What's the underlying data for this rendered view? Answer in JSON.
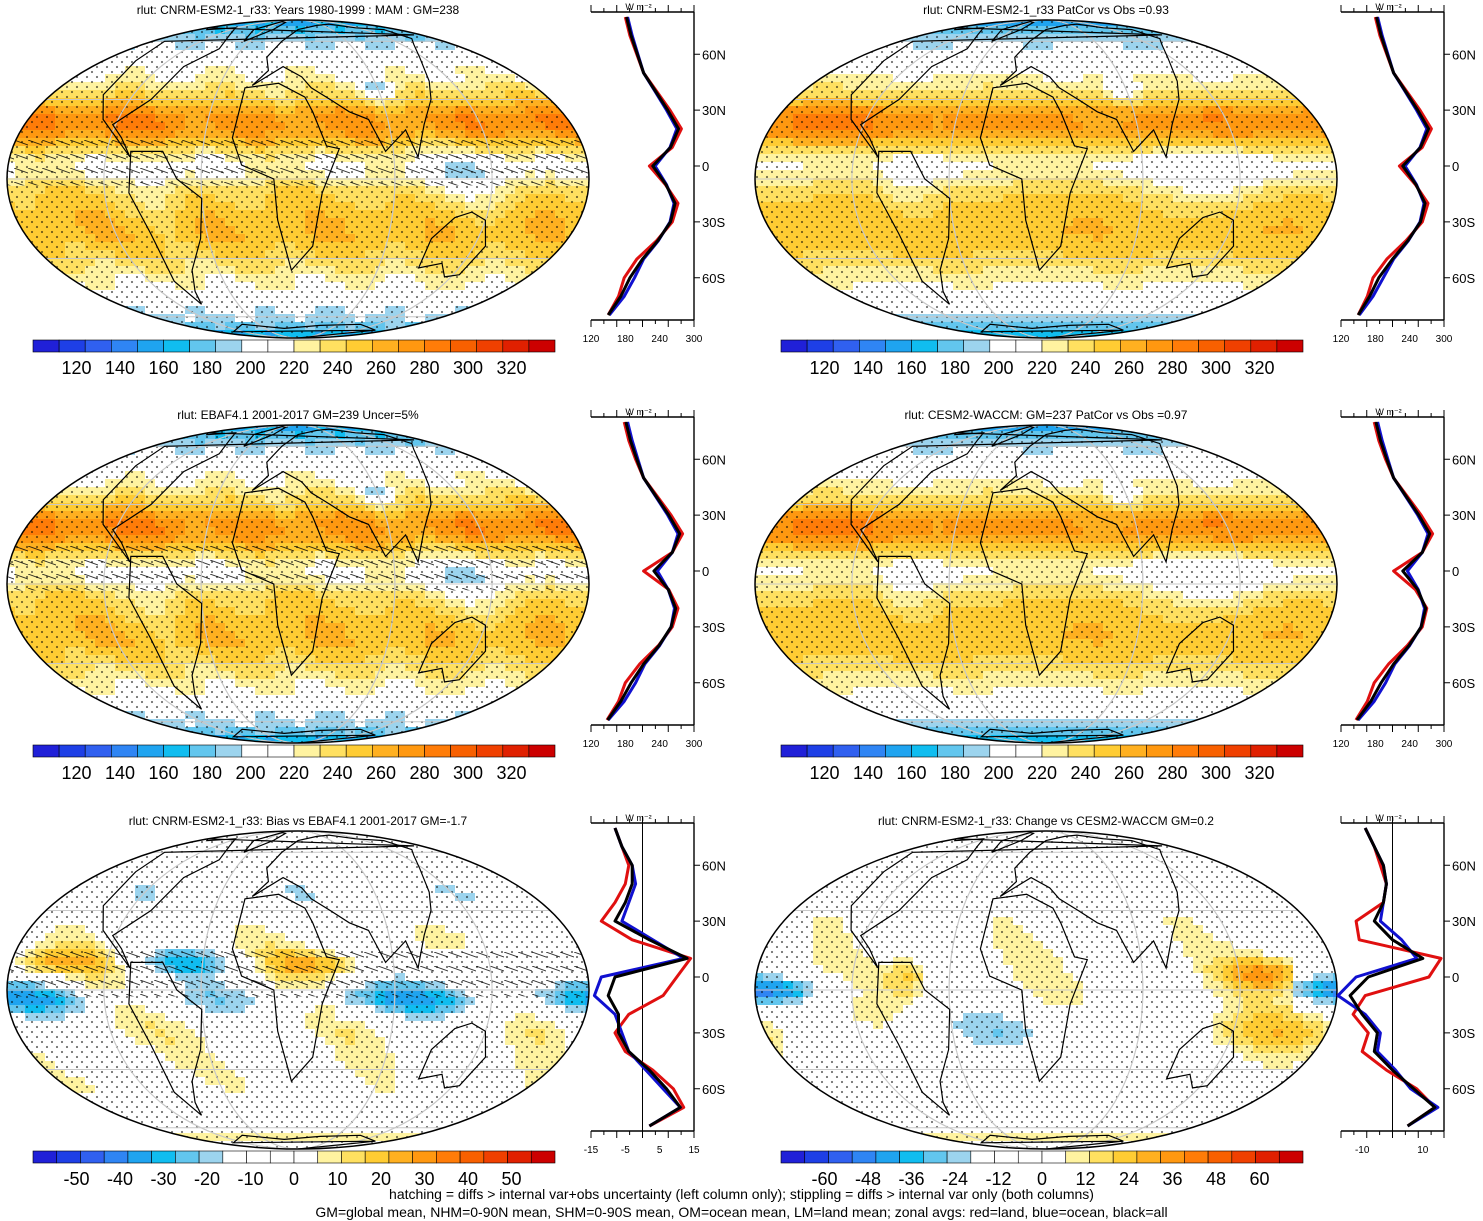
{
  "variable": "rlut",
  "units": "W m⁻²",
  "lat_ticks": [
    "60N",
    "30N",
    "0",
    "30S",
    "60S"
  ],
  "lat_values": [
    60,
    30,
    0,
    -30,
    -60
  ],
  "colors": {
    "land_line": "#e01010",
    "ocean_line": "#1010d0",
    "all_line": "#000000",
    "coast": "#000000",
    "grid": "#c8c8c8"
  },
  "footer": {
    "line1": "hatching = diffs > internal var+obs uncertainty (left column only); stippling = diffs > internal var only (both columns)",
    "line2": "GM=global mean, NHM=0-90N mean, SHM=0-90S mean, OM=ocean mean, LM=land mean; zonal avgs: red=land, blue=ocean, black=all"
  },
  "chart_data": [
    {
      "type": "heatmap",
      "id": "model-climatology",
      "title": "rlut: CNRM-ESM2-1_r33: Years 1980-1999 : MAM : GM=238",
      "colorbar_ticks": [
        "120",
        "140",
        "160",
        "180",
        "200",
        "220",
        "240",
        "260",
        "280",
        "300",
        "320"
      ],
      "colorbar_range": [
        110,
        330
      ],
      "colormap": "absolute",
      "field": "absolute",
      "hatching": true,
      "zonal_profile": {
        "xlim": [
          120,
          300
        ],
        "xticks": [
          "120",
          "180",
          "240",
          "300"
        ],
        "lat": [
          -80,
          -70,
          -60,
          -50,
          -40,
          -30,
          -20,
          -10,
          0,
          10,
          20,
          30,
          40,
          50,
          60,
          70,
          80
        ],
        "land": [
          150,
          168,
          178,
          200,
          235,
          262,
          272,
          250,
          222,
          262,
          278,
          258,
          235,
          212,
          200,
          188,
          180
        ],
        "ocean": [
          152,
          178,
          196,
          212,
          238,
          258,
          265,
          252,
          232,
          258,
          270,
          252,
          232,
          212,
          202,
          192,
          184
        ],
        "all": [
          150,
          172,
          188,
          210,
          237,
          259,
          267,
          251,
          228,
          259,
          273,
          254,
          233,
          212,
          201,
          190,
          182
        ]
      }
    },
    {
      "type": "heatmap",
      "id": "obs-climatology",
      "title": "rlut: EBAF4.1 2001-2017 GM=239 Uncer=5%",
      "colorbar_ticks": [
        "120",
        "140",
        "160",
        "180",
        "200",
        "220",
        "240",
        "260",
        "280",
        "300",
        "320"
      ],
      "colorbar_range": [
        110,
        330
      ],
      "colormap": "absolute",
      "field": "absolute",
      "hatching": true,
      "zonal_profile": {
        "xlim": [
          120,
          300
        ],
        "xticks": [
          "120",
          "180",
          "240",
          "300"
        ],
        "lat": [
          -80,
          -70,
          -60,
          -50,
          -40,
          -30,
          -20,
          -10,
          0,
          10,
          20,
          30,
          40,
          50,
          60,
          70,
          80
        ],
        "land": [
          148,
          168,
          180,
          205,
          238,
          262,
          272,
          256,
          212,
          262,
          280,
          260,
          236,
          212,
          198,
          186,
          178
        ],
        "ocean": [
          150,
          178,
          198,
          214,
          240,
          260,
          266,
          255,
          236,
          262,
          272,
          254,
          233,
          212,
          202,
          192,
          184
        ],
        "all": [
          149,
          172,
          190,
          212,
          239,
          260,
          268,
          255,
          230,
          262,
          275,
          256,
          234,
          212,
          200,
          189,
          181
        ]
      }
    },
    {
      "type": "heatmap",
      "id": "model-bias",
      "title": "rlut: CNRM-ESM2-1_r33: Bias vs EBAF4.1 2001-2017 GM=-1.7",
      "colorbar_ticks": [
        "-50",
        "-40",
        "-30",
        "-20",
        "-10",
        "0",
        "10",
        "20",
        "30",
        "40",
        "50"
      ],
      "colorbar_range": [
        -55,
        55
      ],
      "colormap": "difference",
      "field": "bias",
      "hatching": true,
      "zonal_profile": {
        "xlim": [
          -15,
          15
        ],
        "xticks": [
          "-15",
          "-5",
          "5",
          "15"
        ],
        "lat": [
          -80,
          -70,
          -60,
          -50,
          -40,
          -30,
          -20,
          -10,
          0,
          10,
          20,
          30,
          40,
          50,
          60,
          70,
          80
        ],
        "land": [
          2,
          12,
          9,
          3,
          -5,
          -8,
          -4,
          6,
          10,
          14,
          -3,
          -12,
          -8,
          -5,
          -4,
          -6,
          -8
        ],
        "ocean": [
          2,
          11,
          6,
          1,
          -4,
          -6,
          -8,
          -14,
          -12,
          12,
          3,
          -6,
          -4,
          -2,
          -3,
          -6,
          -8
        ],
        "all": [
          2,
          11,
          7,
          2,
          -4,
          -7,
          -7,
          -10,
          -8,
          13,
          2,
          -8,
          -5,
          -3,
          -3,
          -6,
          -8
        ]
      }
    },
    {
      "type": "heatmap",
      "id": "model-reference-climatology",
      "title": "rlut: CNRM-ESM2-1_r33 PatCor vs Obs =0.93",
      "colorbar_ticks": [
        "120",
        "140",
        "160",
        "180",
        "200",
        "220",
        "240",
        "260",
        "280",
        "300",
        "320"
      ],
      "colorbar_range": [
        110,
        330
      ],
      "colormap": "absolute",
      "field": "absolute-smooth",
      "hatching": false,
      "zonal_profile": {
        "xlim": [
          120,
          300
        ],
        "xticks": [
          "120",
          "180",
          "240",
          "300"
        ],
        "lat": [
          -80,
          -70,
          -60,
          -50,
          -40,
          -30,
          -20,
          -10,
          0,
          10,
          20,
          30,
          40,
          50,
          60,
          70,
          80
        ],
        "land": [
          150,
          166,
          176,
          200,
          234,
          262,
          272,
          250,
          222,
          262,
          278,
          258,
          235,
          212,
          200,
          188,
          180
        ],
        "ocean": [
          152,
          176,
          194,
          212,
          238,
          258,
          265,
          252,
          232,
          258,
          270,
          252,
          232,
          212,
          202,
          192,
          184
        ],
        "all": [
          150,
          170,
          186,
          210,
          237,
          259,
          267,
          251,
          228,
          259,
          273,
          254,
          233,
          212,
          201,
          190,
          182
        ]
      }
    },
    {
      "type": "heatmap",
      "id": "reference-model-climatology",
      "title": "rlut: CESM2-WACCM: GM=237 PatCor vs Obs =0.97",
      "colorbar_ticks": [
        "120",
        "140",
        "160",
        "180",
        "200",
        "220",
        "240",
        "260",
        "280",
        "300",
        "320"
      ],
      "colorbar_range": [
        110,
        330
      ],
      "colormap": "absolute",
      "field": "absolute-smooth",
      "hatching": false,
      "zonal_profile": {
        "xlim": [
          120,
          300
        ],
        "xticks": [
          "120",
          "180",
          "240",
          "300"
        ],
        "lat": [
          -80,
          -70,
          -60,
          -50,
          -40,
          -30,
          -20,
          -10,
          0,
          10,
          20,
          30,
          40,
          50,
          60,
          70,
          80
        ],
        "land": [
          146,
          166,
          178,
          203,
          236,
          262,
          270,
          250,
          212,
          262,
          280,
          260,
          236,
          212,
          198,
          186,
          178
        ],
        "ocean": [
          150,
          178,
          198,
          214,
          240,
          260,
          266,
          255,
          236,
          262,
          272,
          254,
          233,
          212,
          202,
          192,
          184
        ],
        "all": [
          148,
          172,
          190,
          212,
          239,
          260,
          268,
          254,
          228,
          262,
          275,
          256,
          234,
          212,
          200,
          189,
          181
        ]
      }
    },
    {
      "type": "heatmap",
      "id": "model-change",
      "title": "rlut: CNRM-ESM2-1_r33: Change vs CESM2-WACCM GM=0.2",
      "colorbar_ticks": [
        "-60",
        "-48",
        "-36",
        "-24",
        "-12",
        "0",
        "12",
        "24",
        "36",
        "48",
        "60"
      ],
      "colorbar_range": [
        -66,
        66
      ],
      "colormap": "difference",
      "field": "change",
      "hatching": false,
      "zonal_profile": {
        "xlim": [
          -17,
          17
        ],
        "xticks": [
          "-10",
          "10"
        ],
        "lat": [
          -80,
          -70,
          -60,
          -50,
          -40,
          -30,
          -20,
          -10,
          0,
          10,
          20,
          30,
          40,
          50,
          60,
          70,
          80
        ],
        "land": [
          5,
          14,
          8,
          -2,
          -10,
          -8,
          -13,
          -9,
          12,
          16,
          -11,
          -12,
          -3,
          -2,
          -4,
          -6,
          -9
        ],
        "ocean": [
          5,
          15,
          6,
          1,
          -5,
          -4,
          -9,
          -18,
          -12,
          8,
          3,
          -4,
          -3,
          -2,
          -3,
          -6,
          -9
        ],
        "all": [
          5,
          14,
          7,
          0,
          -6,
          -5,
          -10,
          -14,
          -8,
          10,
          0,
          -6,
          -3,
          -2,
          -3,
          -6,
          -9
        ]
      }
    }
  ]
}
